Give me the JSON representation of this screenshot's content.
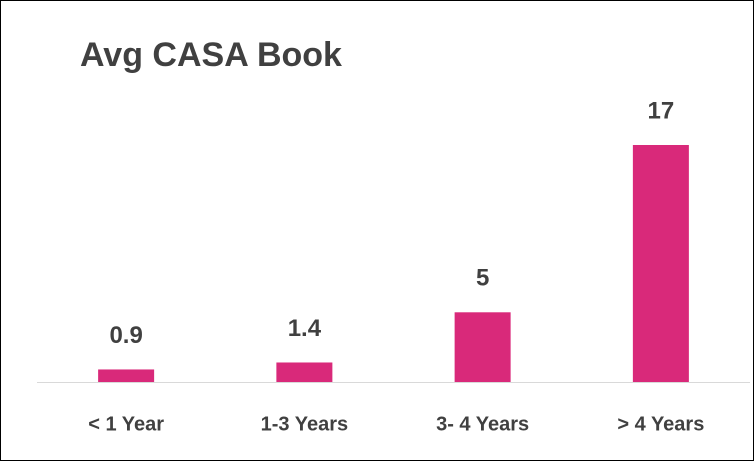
{
  "chart_data": {
    "type": "bar",
    "title": "Avg CASA Book",
    "categories": [
      "< 1 Year",
      "1-3 Years",
      "3- 4 Years",
      "> 4 Years"
    ],
    "values": [
      0.9,
      1.4,
      5,
      17
    ],
    "color": "#d9297a"
  }
}
